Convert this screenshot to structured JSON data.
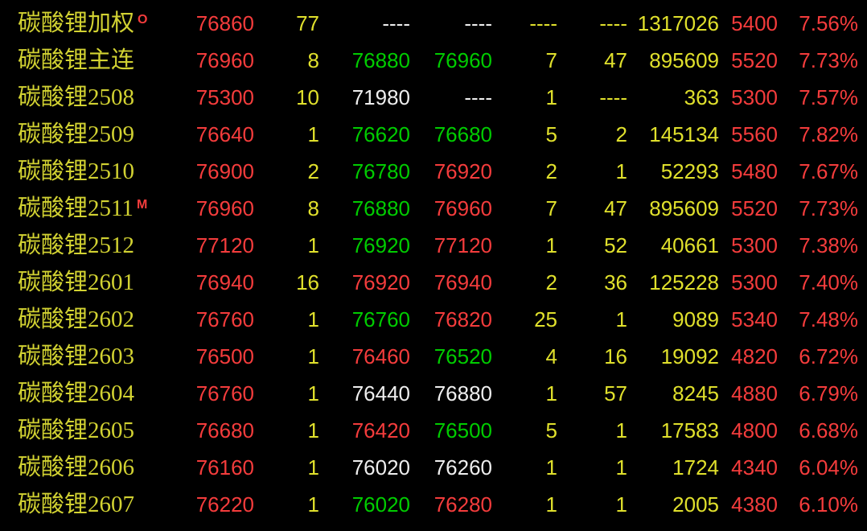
{
  "colors": {
    "background": "#000000",
    "up_red": "#f43c3c",
    "quote_yellow": "#e0e02c",
    "down_green": "#00cc00",
    "flat_white": "#eeeeee",
    "name_yellow": "#d2d232",
    "flag_red": "#f43c3c"
  },
  "table": {
    "rows": [
      {
        "name": "碳酸锂加权",
        "flag": "O",
        "cells": [
          {
            "v": "76860",
            "c": "red"
          },
          {
            "v": "77",
            "c": "yellow"
          },
          {
            "v": "----",
            "c": "white"
          },
          {
            "v": "----",
            "c": "white"
          },
          {
            "v": "----",
            "c": "yellow"
          },
          {
            "v": "----",
            "c": "yellow"
          },
          {
            "v": "1317026",
            "c": "yellow"
          },
          {
            "v": "5400",
            "c": "red"
          },
          {
            "v": "7.56%",
            "c": "red"
          }
        ]
      },
      {
        "name": "碳酸锂主连",
        "flag": "",
        "cells": [
          {
            "v": "76960",
            "c": "red"
          },
          {
            "v": "8",
            "c": "yellow"
          },
          {
            "v": "76880",
            "c": "green"
          },
          {
            "v": "76960",
            "c": "green"
          },
          {
            "v": "7",
            "c": "yellow"
          },
          {
            "v": "47",
            "c": "yellow"
          },
          {
            "v": "895609",
            "c": "yellow"
          },
          {
            "v": "5520",
            "c": "red"
          },
          {
            "v": "7.73%",
            "c": "red"
          }
        ]
      },
      {
        "name": "碳酸锂2508",
        "flag": "",
        "cells": [
          {
            "v": "75300",
            "c": "red"
          },
          {
            "v": "10",
            "c": "yellow"
          },
          {
            "v": "71980",
            "c": "white"
          },
          {
            "v": "----",
            "c": "white"
          },
          {
            "v": "1",
            "c": "yellow"
          },
          {
            "v": "----",
            "c": "yellow"
          },
          {
            "v": "363",
            "c": "yellow"
          },
          {
            "v": "5300",
            "c": "red"
          },
          {
            "v": "7.57%",
            "c": "red"
          }
        ]
      },
      {
        "name": "碳酸锂2509",
        "flag": "",
        "cells": [
          {
            "v": "76640",
            "c": "red"
          },
          {
            "v": "1",
            "c": "yellow"
          },
          {
            "v": "76620",
            "c": "green"
          },
          {
            "v": "76680",
            "c": "green"
          },
          {
            "v": "5",
            "c": "yellow"
          },
          {
            "v": "2",
            "c": "yellow"
          },
          {
            "v": "145134",
            "c": "yellow"
          },
          {
            "v": "5560",
            "c": "red"
          },
          {
            "v": "7.82%",
            "c": "red"
          }
        ]
      },
      {
        "name": "碳酸锂2510",
        "flag": "",
        "cells": [
          {
            "v": "76900",
            "c": "red"
          },
          {
            "v": "2",
            "c": "yellow"
          },
          {
            "v": "76780",
            "c": "green"
          },
          {
            "v": "76920",
            "c": "red"
          },
          {
            "v": "2",
            "c": "yellow"
          },
          {
            "v": "1",
            "c": "yellow"
          },
          {
            "v": "52293",
            "c": "yellow"
          },
          {
            "v": "5480",
            "c": "red"
          },
          {
            "v": "7.67%",
            "c": "red"
          }
        ]
      },
      {
        "name": "碳酸锂2511",
        "flag": "M",
        "cells": [
          {
            "v": "76960",
            "c": "red"
          },
          {
            "v": "8",
            "c": "yellow"
          },
          {
            "v": "76880",
            "c": "green"
          },
          {
            "v": "76960",
            "c": "red"
          },
          {
            "v": "7",
            "c": "yellow"
          },
          {
            "v": "47",
            "c": "yellow"
          },
          {
            "v": "895609",
            "c": "yellow"
          },
          {
            "v": "5520",
            "c": "red"
          },
          {
            "v": "7.73%",
            "c": "red"
          }
        ]
      },
      {
        "name": "碳酸锂2512",
        "flag": "",
        "cells": [
          {
            "v": "77120",
            "c": "red"
          },
          {
            "v": "1",
            "c": "yellow"
          },
          {
            "v": "76920",
            "c": "green"
          },
          {
            "v": "77120",
            "c": "red"
          },
          {
            "v": "1",
            "c": "yellow"
          },
          {
            "v": "52",
            "c": "yellow"
          },
          {
            "v": "40661",
            "c": "yellow"
          },
          {
            "v": "5300",
            "c": "red"
          },
          {
            "v": "7.38%",
            "c": "red"
          }
        ]
      },
      {
        "name": "碳酸锂2601",
        "flag": "",
        "cells": [
          {
            "v": "76940",
            "c": "red"
          },
          {
            "v": "16",
            "c": "yellow"
          },
          {
            "v": "76920",
            "c": "red"
          },
          {
            "v": "76940",
            "c": "red"
          },
          {
            "v": "2",
            "c": "yellow"
          },
          {
            "v": "36",
            "c": "yellow"
          },
          {
            "v": "125228",
            "c": "yellow"
          },
          {
            "v": "5300",
            "c": "red"
          },
          {
            "v": "7.40%",
            "c": "red"
          }
        ]
      },
      {
        "name": "碳酸锂2602",
        "flag": "",
        "cells": [
          {
            "v": "76760",
            "c": "red"
          },
          {
            "v": "1",
            "c": "yellow"
          },
          {
            "v": "76760",
            "c": "green"
          },
          {
            "v": "76820",
            "c": "red"
          },
          {
            "v": "25",
            "c": "yellow"
          },
          {
            "v": "1",
            "c": "yellow"
          },
          {
            "v": "9089",
            "c": "yellow"
          },
          {
            "v": "5340",
            "c": "red"
          },
          {
            "v": "7.48%",
            "c": "red"
          }
        ]
      },
      {
        "name": "碳酸锂2603",
        "flag": "",
        "cells": [
          {
            "v": "76500",
            "c": "red"
          },
          {
            "v": "1",
            "c": "yellow"
          },
          {
            "v": "76460",
            "c": "red"
          },
          {
            "v": "76520",
            "c": "green"
          },
          {
            "v": "4",
            "c": "yellow"
          },
          {
            "v": "16",
            "c": "yellow"
          },
          {
            "v": "19092",
            "c": "yellow"
          },
          {
            "v": "4820",
            "c": "red"
          },
          {
            "v": "6.72%",
            "c": "red"
          }
        ]
      },
      {
        "name": "碳酸锂2604",
        "flag": "",
        "cells": [
          {
            "v": "76760",
            "c": "red"
          },
          {
            "v": "1",
            "c": "yellow"
          },
          {
            "v": "76440",
            "c": "white"
          },
          {
            "v": "76880",
            "c": "white"
          },
          {
            "v": "1",
            "c": "yellow"
          },
          {
            "v": "57",
            "c": "yellow"
          },
          {
            "v": "8245",
            "c": "yellow"
          },
          {
            "v": "4880",
            "c": "red"
          },
          {
            "v": "6.79%",
            "c": "red"
          }
        ]
      },
      {
        "name": "碳酸锂2605",
        "flag": "",
        "cells": [
          {
            "v": "76680",
            "c": "red"
          },
          {
            "v": "1",
            "c": "yellow"
          },
          {
            "v": "76420",
            "c": "red"
          },
          {
            "v": "76500",
            "c": "green"
          },
          {
            "v": "5",
            "c": "yellow"
          },
          {
            "v": "1",
            "c": "yellow"
          },
          {
            "v": "17583",
            "c": "yellow"
          },
          {
            "v": "4800",
            "c": "red"
          },
          {
            "v": "6.68%",
            "c": "red"
          }
        ]
      },
      {
        "name": "碳酸锂2606",
        "flag": "",
        "cells": [
          {
            "v": "76160",
            "c": "red"
          },
          {
            "v": "1",
            "c": "yellow"
          },
          {
            "v": "76020",
            "c": "white"
          },
          {
            "v": "76260",
            "c": "white"
          },
          {
            "v": "1",
            "c": "yellow"
          },
          {
            "v": "1",
            "c": "yellow"
          },
          {
            "v": "1724",
            "c": "yellow"
          },
          {
            "v": "4340",
            "c": "red"
          },
          {
            "v": "6.04%",
            "c": "red"
          }
        ]
      },
      {
        "name": "碳酸锂2607",
        "flag": "",
        "cells": [
          {
            "v": "76220",
            "c": "red"
          },
          {
            "v": "1",
            "c": "yellow"
          },
          {
            "v": "76020",
            "c": "green"
          },
          {
            "v": "76280",
            "c": "red"
          },
          {
            "v": "1",
            "c": "yellow"
          },
          {
            "v": "1",
            "c": "yellow"
          },
          {
            "v": "2005",
            "c": "yellow"
          },
          {
            "v": "4380",
            "c": "red"
          },
          {
            "v": "6.10%",
            "c": "red"
          }
        ]
      }
    ]
  }
}
